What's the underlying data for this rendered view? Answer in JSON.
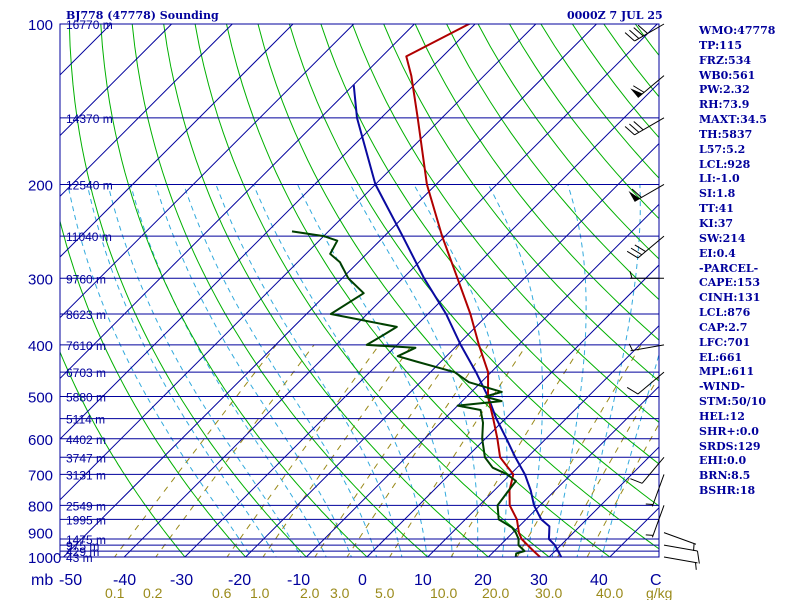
{
  "header": {
    "station": "BJ778 (47778) Sounding",
    "valid": "0000Z  7 JUL 25"
  },
  "indices": [
    "WMO:47778",
    "TP:115",
    "FRZ:534",
    "WB0:561",
    "PW:2.32",
    "RH:73.9",
    "MAXT:34.5",
    "TH:5837",
    "L57:5.2",
    "LCL:928",
    "LI:-1.0",
    "SI:1.8",
    "TT:41",
    "KI:37",
    "SW:214",
    "EI:0.4",
    "-PARCEL-",
    "CAPE:153",
    "CINH:131",
    "LCL:876",
    "CAP:2.7",
    "LFC:701",
    "EL:661",
    "MPL:611",
    "-WIND-",
    "STM:50/10",
    "HEL:12",
    "SHR+:0.0",
    "SRDS:129",
    "EHI:0.0",
    "BRN:8.5",
    "BSHR:18"
  ],
  "chart_data": {
    "type": "skew-t",
    "colors": {
      "isobar": "#00009c",
      "isotherm": "#00009c",
      "dry_adiabat": "#00b000",
      "moist_adiabat": "#33aadd",
      "mixing_ratio": "#9a8a1a",
      "temperature": "#b00000",
      "dewpoint": "#004000",
      "parcel": "#0a0aa0",
      "text": "#00009c",
      "mixratio_text": "#9a8a1a"
    },
    "units": {
      "pressure": "mb",
      "temperature": "C",
      "mixing_ratio": "g/kg"
    },
    "pressure_range": [
      1000,
      100
    ],
    "temperature_range": [
      -50,
      50
    ],
    "pressure_levels": [
      1000,
      900,
      800,
      700,
      600,
      500,
      400,
      300,
      200,
      100
    ],
    "pressure_labels": [
      "1000",
      "900",
      "800",
      "700",
      "600",
      "500",
      "400",
      "300",
      "200",
      "100"
    ],
    "temperature_ticks": [
      -40,
      -30,
      -20,
      -10,
      0,
      10,
      20,
      30,
      40
    ],
    "temperature_labels": [
      "-50",
      "-40",
      "-30",
      "-20",
      "-10",
      "0",
      "10",
      "20",
      "30",
      "40",
      "C"
    ],
    "axis_label_p": "mb",
    "mixing_ratio_labels": [
      "0.1",
      "0.2",
      "0.6",
      "1.0",
      "2.0",
      "3.0",
      "5.0",
      "10.0",
      "20.0",
      "30.0",
      "40.0",
      "g/kg"
    ],
    "mixing_ratio_values": [
      0.1,
      0.2,
      0.6,
      1.0,
      2.0,
      3.0,
      5.0,
      10.0,
      20.0,
      30.0,
      40.0
    ],
    "height_levels": [
      {
        "p": 1000,
        "label": "43 m"
      },
      {
        "p": 975,
        "label": "429 m"
      },
      {
        "p": 950,
        "label": "975 m"
      },
      {
        "p": 925,
        "label": "1475 m"
      },
      {
        "p": 850,
        "label": "1995 m"
      },
      {
        "p": 800,
        "label": "2549 m"
      },
      {
        "p": 700,
        "label": "3131 m"
      },
      {
        "p": 650,
        "label": "3747 m"
      },
      {
        "p": 600,
        "label": "4402 m"
      },
      {
        "p": 550,
        "label": "5114 m"
      },
      {
        "p": 500,
        "label": "5880 m"
      },
      {
        "p": 450,
        "label": "6703 m"
      },
      {
        "p": 400,
        "label": "7610 m"
      },
      {
        "p": 350,
        "label": "8623 m"
      },
      {
        "p": 300,
        "label": "9760 m"
      },
      {
        "p": 250,
        "label": "11040 m"
      },
      {
        "p": 200,
        "label": "12540 m"
      },
      {
        "p": 150,
        "label": "14370 m"
      },
      {
        "p": 100,
        "label": "16770 m"
      }
    ],
    "temperature_profile": [
      [
        1000,
        28.5
      ],
      [
        975,
        26.5
      ],
      [
        950,
        24.5
      ],
      [
        925,
        22.5
      ],
      [
        900,
        21.0
      ],
      [
        850,
        18.5
      ],
      [
        800,
        15.0
      ],
      [
        750,
        12.5
      ],
      [
        700,
        10.5
      ],
      [
        650,
        5.5
      ],
      [
        600,
        2.0
      ],
      [
        550,
        -2.0
      ],
      [
        500,
        -6.5
      ],
      [
        450,
        -10.5
      ],
      [
        400,
        -16.5
      ],
      [
        350,
        -23.0
      ],
      [
        300,
        -31.0
      ],
      [
        250,
        -40.5
      ],
      [
        200,
        -51.5
      ],
      [
        150,
        -64.0
      ],
      [
        125,
        -72.0
      ],
      [
        115,
        -76.0
      ],
      [
        100,
        -71.0
      ],
      [
        90,
        -67.0
      ]
    ],
    "dewpoint_profile": [
      [
        1000,
        24.5
      ],
      [
        985,
        24.0
      ],
      [
        975,
        25.0
      ],
      [
        950,
        23.0
      ],
      [
        925,
        22.0
      ],
      [
        900,
        20.5
      ],
      [
        880,
        19.0
      ],
      [
        850,
        15.5
      ],
      [
        800,
        13.0
      ],
      [
        760,
        12.5
      ],
      [
        720,
        12.0
      ],
      [
        700,
        9.5
      ],
      [
        680,
        6.0
      ],
      [
        650,
        3.0
      ],
      [
        600,
        -0.5
      ],
      [
        560,
        -3.0
      ],
      [
        530,
        -5.5
      ],
      [
        520,
        -10.0
      ],
      [
        510,
        -3.5
      ],
      [
        500,
        -7.0
      ],
      [
        490,
        -5.0
      ],
      [
        470,
        -12.0
      ],
      [
        450,
        -16.0
      ],
      [
        430,
        -24.0
      ],
      [
        420,
        -28.0
      ],
      [
        405,
        -26.5
      ],
      [
        400,
        -35.0
      ],
      [
        385,
        -34.0
      ],
      [
        370,
        -33.0
      ],
      [
        350,
        -46.0
      ],
      [
        320,
        -44.0
      ],
      [
        300,
        -49.0
      ],
      [
        280,
        -53.0
      ],
      [
        270,
        -56.0
      ],
      [
        255,
        -57.0
      ],
      [
        250,
        -60.0
      ],
      [
        245,
        -66.0
      ]
    ],
    "parcel_path": [
      [
        1000,
        32.0
      ],
      [
        950,
        29.0
      ],
      [
        925,
        27.0
      ],
      [
        900,
        26.0
      ],
      [
        876,
        25.0
      ],
      [
        850,
        22.5
      ],
      [
        800,
        19.0
      ],
      [
        750,
        16.0
      ],
      [
        701,
        12.5
      ],
      [
        650,
        8.0
      ],
      [
        600,
        3.5
      ],
      [
        550,
        -1.5
      ],
      [
        500,
        -6.5
      ],
      [
        450,
        -12.5
      ],
      [
        400,
        -19.5
      ],
      [
        350,
        -27.0
      ],
      [
        300,
        -36.5
      ],
      [
        250,
        -47.0
      ],
      [
        200,
        -60.0
      ],
      [
        150,
        -74.0
      ],
      [
        130,
        -80.0
      ]
    ],
    "winds": [
      {
        "p": 1000,
        "dir": 100,
        "spd": 5
      },
      {
        "p": 950,
        "dir": 100,
        "spd": 10
      },
      {
        "p": 900,
        "dir": 110,
        "spd": 5
      },
      {
        "p": 800,
        "dir": 200,
        "spd": 5
      },
      {
        "p": 700,
        "dir": 200,
        "spd": 5
      },
      {
        "p": 650,
        "dir": 220,
        "spd": 10
      },
      {
        "p": 450,
        "dir": 230,
        "spd": 10
      },
      {
        "p": 400,
        "dir": 260,
        "spd": 5
      },
      {
        "p": 300,
        "dir": 270,
        "spd": 5
      },
      {
        "p": 250,
        "dir": 230,
        "spd": 30
      },
      {
        "p": 200,
        "dir": 240,
        "spd": 60
      },
      {
        "p": 150,
        "dir": 240,
        "spd": 30
      },
      {
        "p": 125,
        "dir": 230,
        "spd": 60
      },
      {
        "p": 100,
        "dir": 240,
        "spd": 40
      }
    ]
  }
}
